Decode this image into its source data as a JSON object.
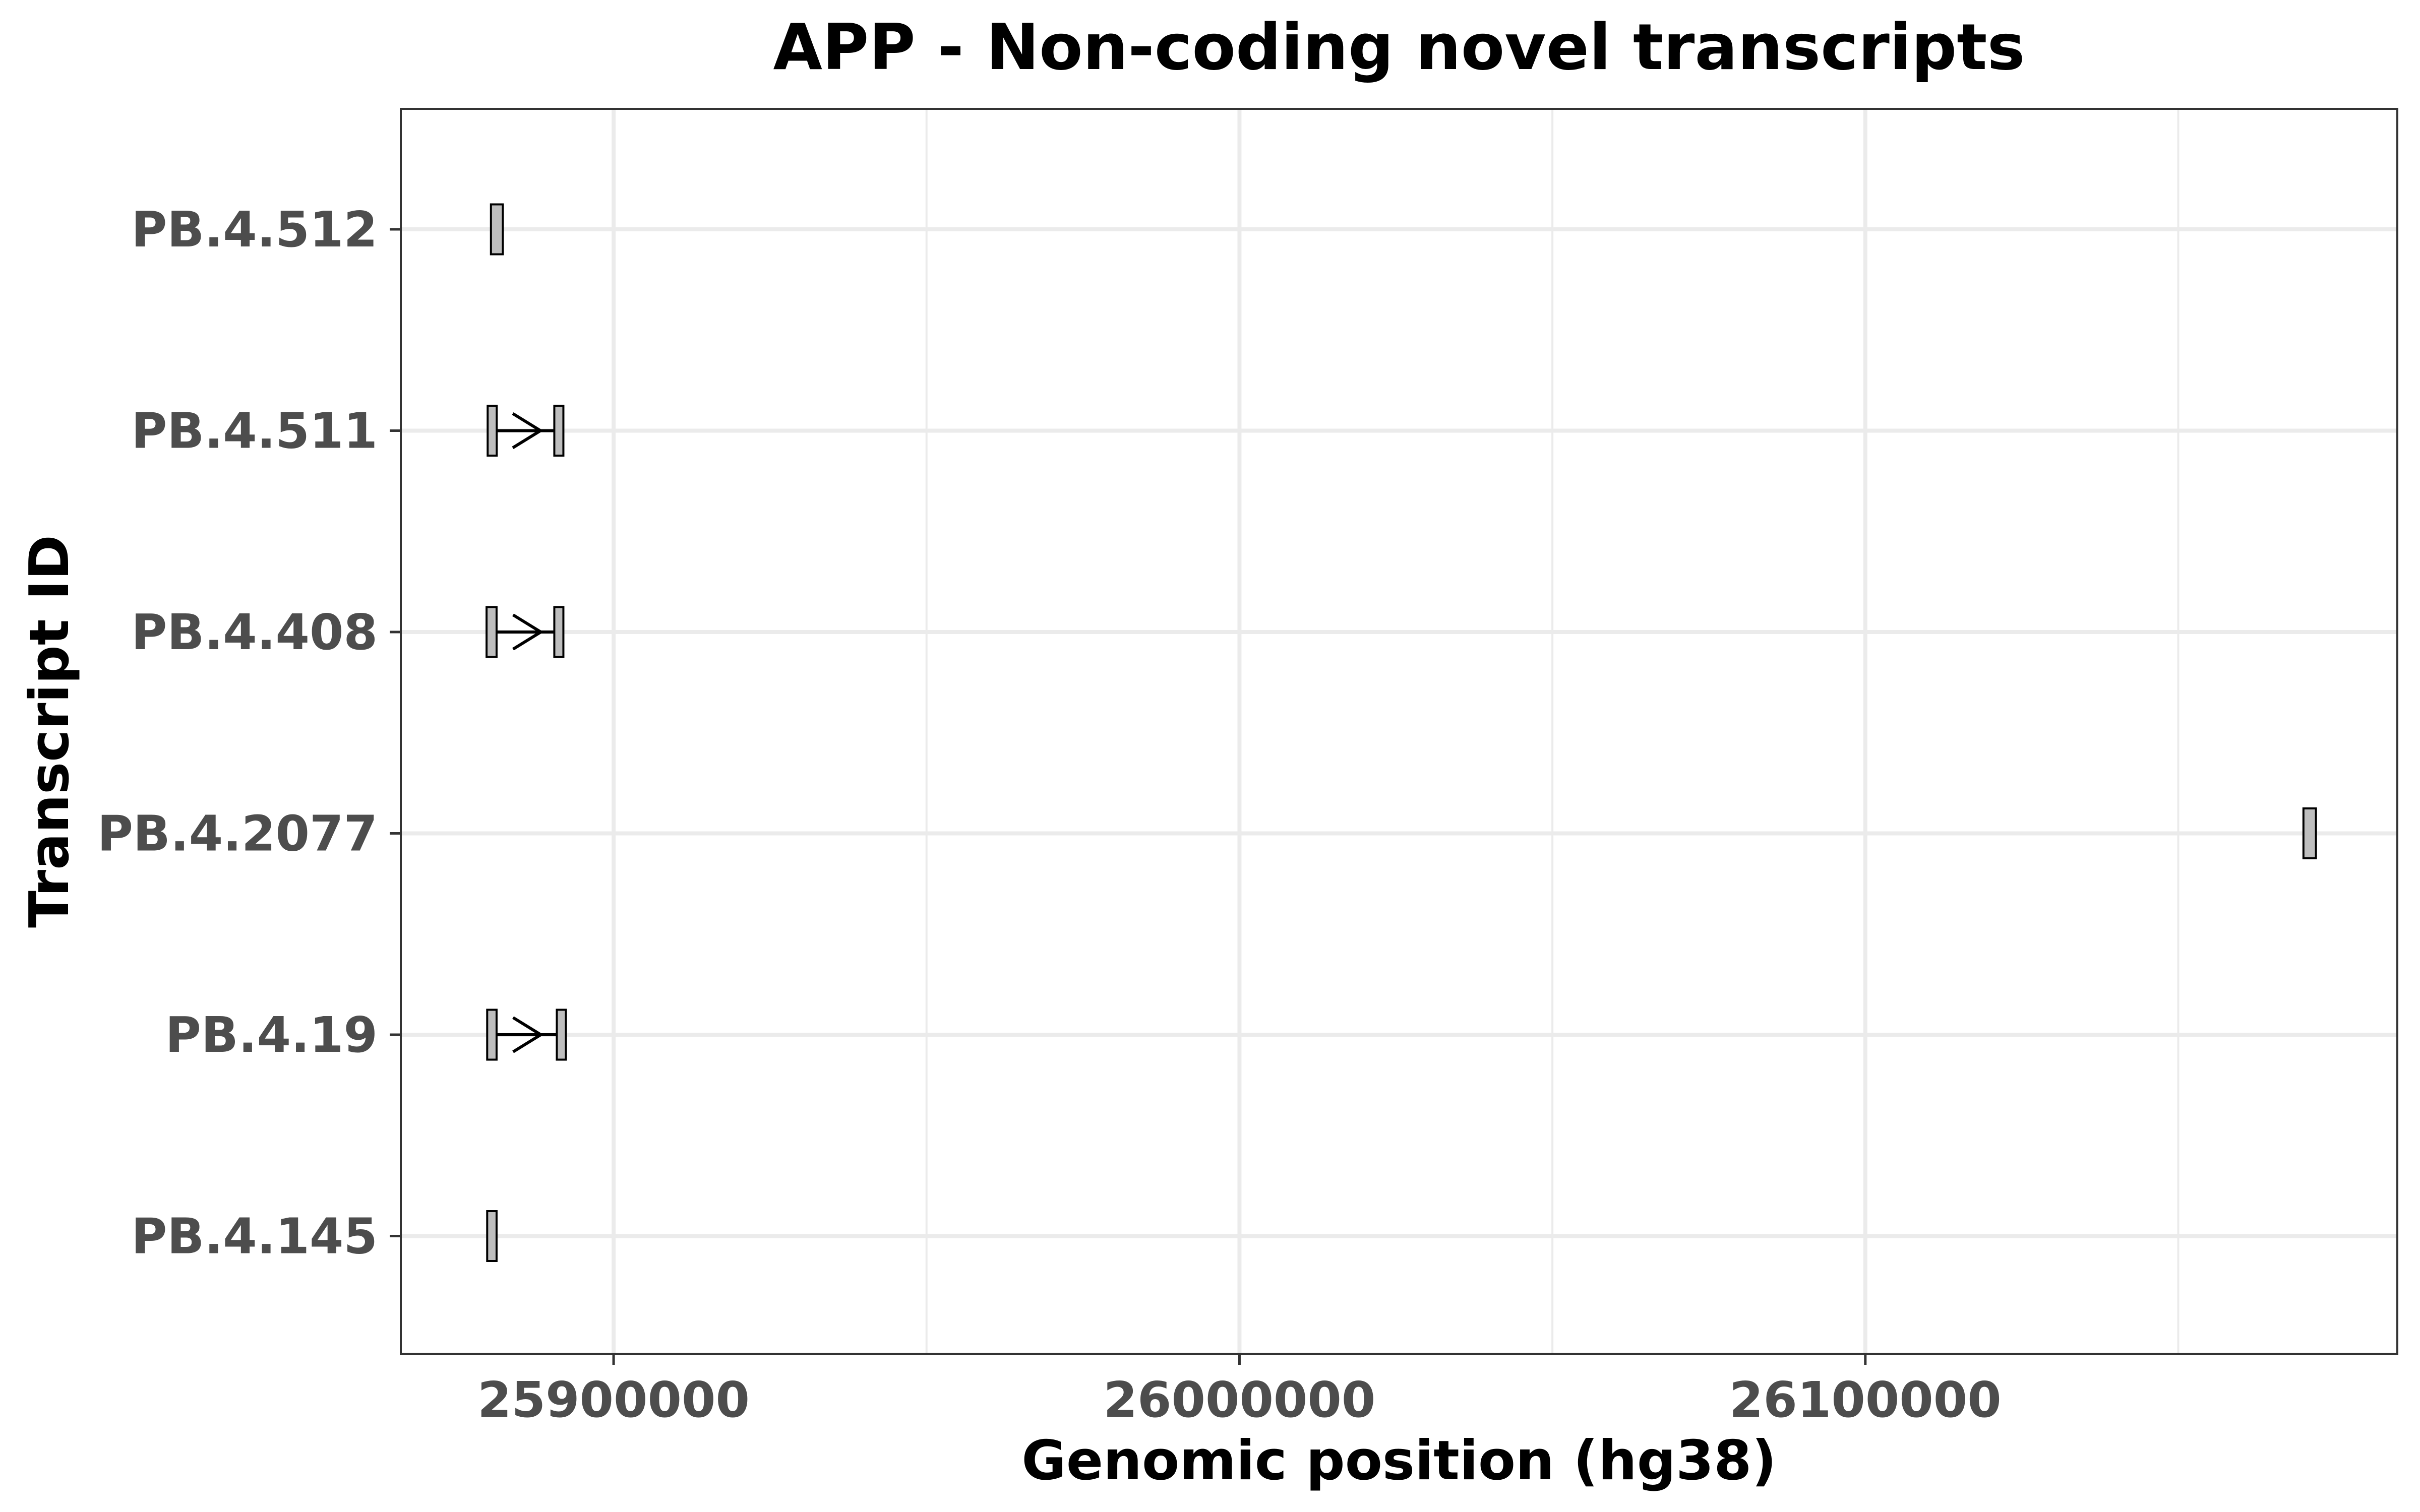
{
  "chart_data": {
    "type": "gene-track",
    "title": "APP - Non-coding novel transcripts",
    "xlabel": "Genomic position (hg38)",
    "ylabel": "Transcript ID",
    "xlim": [
      25866000,
      26185000
    ],
    "x_ticks": [
      25900000,
      26000000,
      26100000
    ],
    "x_tick_labels": [
      "25900000",
      "26000000",
      "26100000"
    ],
    "x_minor_gridlines": [
      25950000,
      26050000,
      26150000
    ],
    "grid": true,
    "legend": "none",
    "colors": {
      "exon_fill": "#bebebe",
      "exon_stroke": "#000000",
      "intron_line": "#000000",
      "grid": "#ebebeb",
      "panel_border": "#333333"
    },
    "transcripts": [
      {
        "id": "PB.4.512",
        "strand": "-",
        "exons": [
          [
            25880400,
            25882300
          ]
        ],
        "introns": []
      },
      {
        "id": "PB.4.511",
        "strand": "-",
        "exons": [
          [
            25880000,
            25881200
          ],
          [
            25891000,
            25891500
          ]
        ],
        "introns": [
          [
            25881200,
            25891000
          ]
        ]
      },
      {
        "id": "PB.4.408",
        "strand": "-",
        "exons": [
          [
            25879700,
            25881300
          ],
          [
            25891000,
            25891500
          ]
        ],
        "introns": [
          [
            25881300,
            25891000
          ]
        ]
      },
      {
        "id": "PB.4.2077",
        "strand": "",
        "exons": [
          [
            26170000,
            26172000
          ]
        ],
        "introns": []
      },
      {
        "id": "PB.4.19",
        "strand": "-",
        "exons": [
          [
            25879800,
            25881300
          ],
          [
            25891000,
            25892300
          ]
        ],
        "introns": [
          [
            25881300,
            25891000
          ]
        ]
      },
      {
        "id": "PB.4.145",
        "strand": "",
        "exons": [
          [
            25879800,
            25881300
          ]
        ],
        "introns": []
      }
    ]
  }
}
